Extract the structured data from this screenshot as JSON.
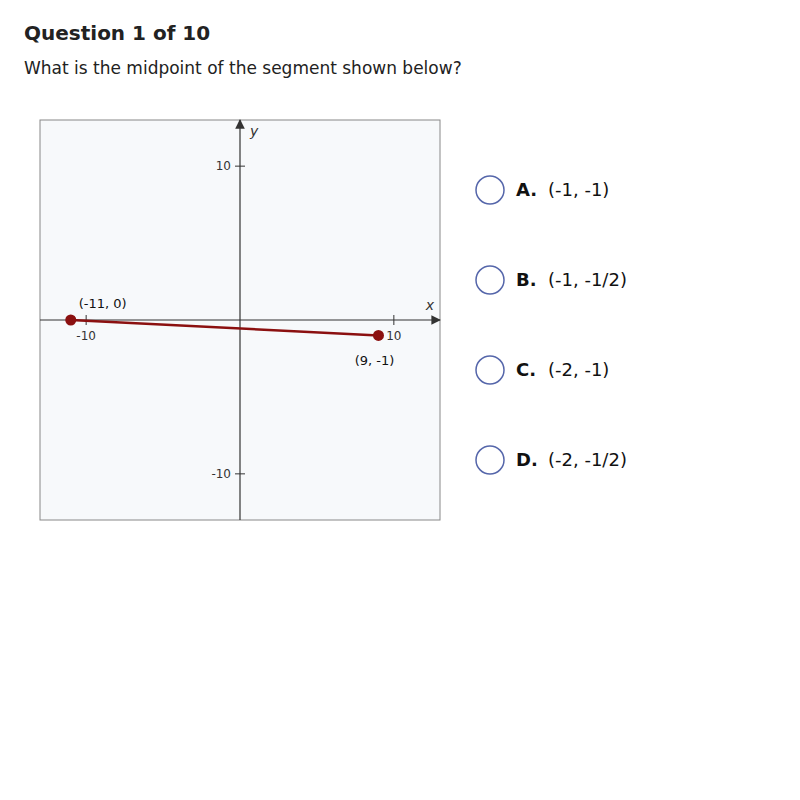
{
  "chart_data": {
    "type": "line",
    "title": "Question 1 of 10",
    "subtitle": "What is the midpoint of the segment shown below?",
    "x_label": "x",
    "y_label": "y",
    "x": [
      -11,
      9
    ],
    "values": [
      0,
      -1
    ],
    "value_labels": [
      "(-11, 0)",
      "(9, -1)"
    ],
    "data_labels": true,
    "color": "#8b1010",
    "marker": "circle",
    "xlim": [
      -13,
      13
    ],
    "ylim": [
      -13,
      13
    ],
    "xticks": [
      -10,
      10
    ],
    "yticks": [
      -10,
      10
    ],
    "grid": false,
    "annotations": [
      {
        "label": "A.",
        "text": "(-1, -1)"
      },
      {
        "label": "B.",
        "text": "(-1, -1/2)"
      },
      {
        "label": "C.",
        "text": "(-2, -1)"
      },
      {
        "label": "D.",
        "text": "(-2, -1/2)"
      }
    ]
  }
}
